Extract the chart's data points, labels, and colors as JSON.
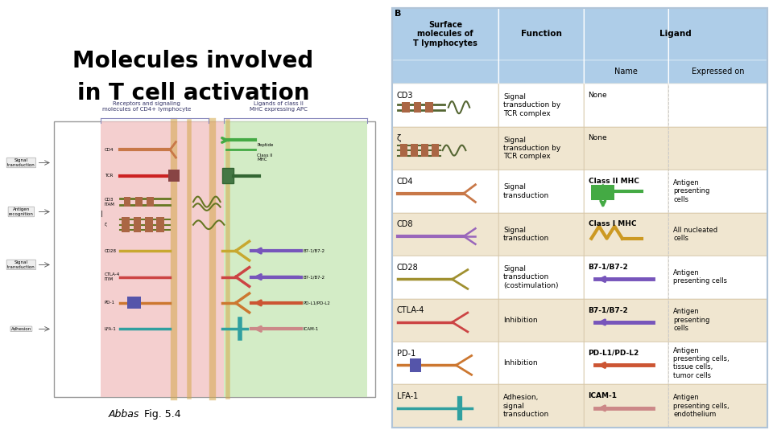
{
  "title_line1": "Molecules involved",
  "title_line2": "in T cell activation",
  "caption_italic": "Abbas",
  "caption_normal": " Fig. 5.4",
  "panel_b_label": "B",
  "header_bg": "#aecde8",
  "row_bg_odd": "#ffffff",
  "row_bg_even": "#f0e6d0",
  "table_border": "#c8b89a",
  "col_header_1": "Surface\nmolecules of\nT lymphocytes",
  "col_header_2": "Function",
  "col_header_3": "Ligand",
  "sub_header_3a": "Name",
  "sub_header_3b": "Expressed on",
  "rows": [
    {
      "molecule": "CD3",
      "function": "Signal\ntransduction by\nTCR complex",
      "ligand_name": "None",
      "expressed_on": "",
      "bg": "#ffffff"
    },
    {
      "molecule": "ζ",
      "function": "Signal\ntransduction by\nTCR complex",
      "ligand_name": "None",
      "expressed_on": "",
      "bg": "#f0e6d0"
    },
    {
      "molecule": "CD4",
      "function": "Signal\ntransduction",
      "ligand_name": "Class II MHC",
      "expressed_on": "Antigen\npresenting\ncells",
      "bg": "#ffffff"
    },
    {
      "molecule": "CD8",
      "function": "Signal\ntransduction",
      "ligand_name": "Class I MHC",
      "expressed_on": "All nucleated\ncells",
      "bg": "#f0e6d0"
    },
    {
      "molecule": "CD28",
      "function": "Signal\ntransduction\n(costimulation)",
      "ligand_name": "B7-1/B7-2",
      "expressed_on": "Antigen\npresenting cells",
      "bg": "#ffffff"
    },
    {
      "molecule": "CTLA-4",
      "function": "Inhibition",
      "ligand_name": "B7-1/B7-2",
      "expressed_on": "Antigen\npresenting\ncells",
      "bg": "#f0e6d0"
    },
    {
      "molecule": "PD-1",
      "function": "Inhibition",
      "ligand_name": "PD-L1/PD-L2",
      "expressed_on": "Antigen\npresenting cells,\ntissue cells,\ntumor cells",
      "bg": "#ffffff"
    },
    {
      "molecule": "LFA-1",
      "function": "Adhesion,\nsignal\ntransduction",
      "ligand_name": "ICAM-1",
      "expressed_on": "Antigen\npresenting cells,\nendothelium",
      "bg": "#f0e6d0"
    }
  ]
}
